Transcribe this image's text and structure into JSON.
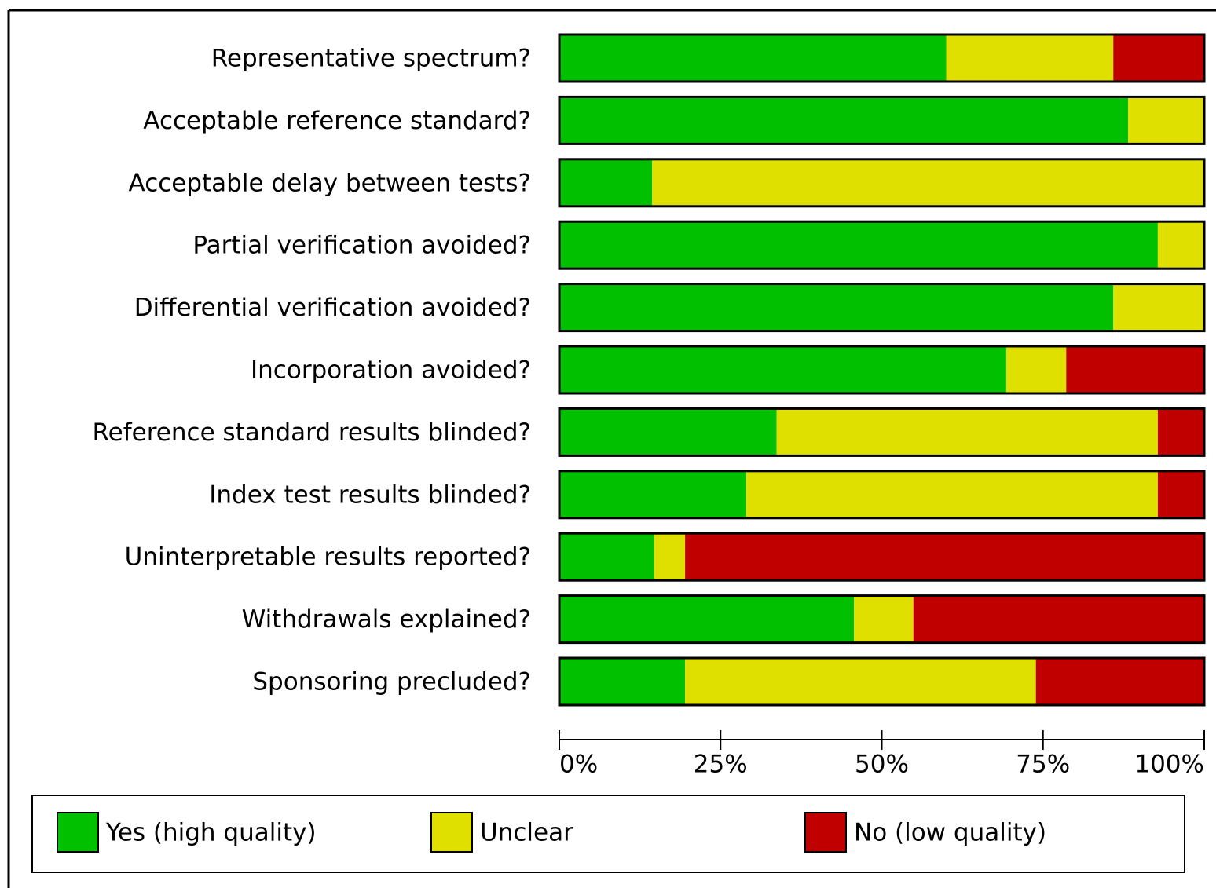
{
  "chart_data": {
    "type": "stacked-bar-horizontal",
    "categories": [
      "Representative spectrum?",
      "Acceptable reference standard?",
      "Acceptable delay between tests?",
      "Partial verification avoided?",
      "Differential verification avoided?",
      "Incorporation avoided?",
      "Reference standard results blinded?",
      "Index test results blinded?",
      "Uninterpretable results reported?",
      "Withdrawals explained?",
      "Sponsoring precluded?"
    ],
    "series": [
      {
        "name": "Yes (high quality)",
        "color": "#00c000",
        "values": [
          60.0,
          88.2,
          14.4,
          92.8,
          85.9,
          69.3,
          33.7,
          29.0,
          14.7,
          45.7,
          19.5
        ]
      },
      {
        "name": "Unclear",
        "color": "#e0e000",
        "values": [
          25.9,
          11.8,
          85.6,
          7.2,
          14.1,
          9.3,
          59.1,
          63.8,
          4.8,
          9.2,
          54.4
        ]
      },
      {
        "name": "No (low quality)",
        "color": "#c00000",
        "values": [
          14.1,
          0,
          0,
          0,
          0,
          21.4,
          7.2,
          7.2,
          80.5,
          45.1,
          26.1
        ]
      }
    ],
    "xlim": [
      0,
      100
    ],
    "xticks": [
      {
        "value": 0,
        "label": "0%"
      },
      {
        "value": 25,
        "label": "25%"
      },
      {
        "value": 50,
        "label": "50%"
      },
      {
        "value": 75,
        "label": "75%"
      },
      {
        "value": 100,
        "label": "100%"
      }
    ],
    "legend": "bottom"
  }
}
